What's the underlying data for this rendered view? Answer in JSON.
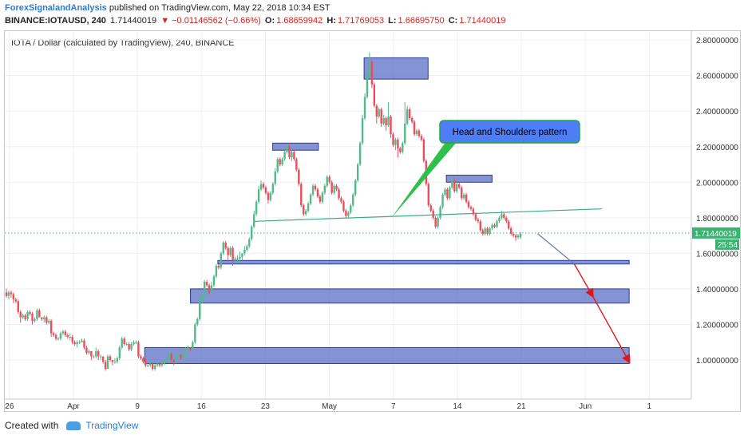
{
  "header": {
    "author": "ForexSignalandAnalysis",
    "published": "published on TradingView.com, May 22, 2018 10:34 EST",
    "symbol": "BINANCE:IOTAUSD, 240",
    "last": "1.71440019",
    "change": "▼ −0.01146562 (−0.66%)",
    "o_label": "O:",
    "o_value": "1.68659942",
    "h_label": "H:",
    "h_value": "1.71769053",
    "l_label": "L:",
    "l_value": "1.66695750",
    "c_label": "C:",
    "c_value": "1.71440019"
  },
  "footer": {
    "created_with": "Created with",
    "brand": "TradingView"
  },
  "chart_data": {
    "type": "candlestick",
    "title": "IOTA / Dollar (calculated by TradingView), 240, BINANCE",
    "y_range": [
      0.78,
      2.85
    ],
    "y_ticks": [
      "2.80000000",
      "2.60000000",
      "2.40000000",
      "2.20000000",
      "2.00000000",
      "1.80000000",
      "1.60000000",
      "1.40000000",
      "1.20000000",
      "1.00000000"
    ],
    "x_ticks": [
      "26",
      "Apr",
      "9",
      "16",
      "23",
      "May",
      "7",
      "14",
      "21",
      "Jun",
      "1"
    ],
    "last_price_label": "1.71440019",
    "countdown_label": "25:54",
    "last_price": 1.7144,
    "colors": {
      "up": "#53b987",
      "down": "#eb4d5c",
      "zone": "#5a6fc4",
      "neckline": "#3aa88a",
      "projection": "#e0161e",
      "callout_fill": "#4e7df5",
      "callout_border": "#22a83a",
      "price_tag": "#3cb371"
    },
    "annotation": "Head and Shoulders pattern",
    "candles": [
      [
        1.38,
        1.36,
        1.4,
        1.35
      ],
      [
        1.36,
        1.38,
        1.39,
        1.34
      ],
      [
        1.38,
        1.37,
        1.39,
        1.35
      ],
      [
        1.37,
        1.34,
        1.38,
        1.32
      ],
      [
        1.34,
        1.33,
        1.35,
        1.32
      ],
      [
        1.33,
        1.27,
        1.34,
        1.26
      ],
      [
        1.27,
        1.24,
        1.28,
        1.21
      ],
      [
        1.24,
        1.25,
        1.26,
        1.23
      ],
      [
        1.25,
        1.23,
        1.26,
        1.22
      ],
      [
        1.23,
        1.27,
        1.28,
        1.22
      ],
      [
        1.27,
        1.26,
        1.28,
        1.25
      ],
      [
        1.26,
        1.22,
        1.27,
        1.2
      ],
      [
        1.22,
        1.23,
        1.24,
        1.21
      ],
      [
        1.23,
        1.28,
        1.29,
        1.22
      ],
      [
        1.28,
        1.24,
        1.29,
        1.24
      ],
      [
        1.24,
        1.23,
        1.24,
        1.22
      ],
      [
        1.23,
        1.24,
        1.25,
        1.21
      ],
      [
        1.24,
        1.21,
        1.25,
        1.2
      ],
      [
        1.21,
        1.22,
        1.23,
        1.2
      ],
      [
        1.22,
        1.15,
        1.23,
        1.13
      ],
      [
        1.15,
        1.14,
        1.16,
        1.13
      ],
      [
        1.14,
        1.12,
        1.15,
        1.11
      ],
      [
        1.12,
        1.12,
        1.13,
        1.11
      ],
      [
        1.12,
        1.15,
        1.16,
        1.11
      ],
      [
        1.15,
        1.16,
        1.17,
        1.14
      ],
      [
        1.16,
        1.14,
        1.17,
        1.13
      ],
      [
        1.14,
        1.13,
        1.15,
        1.12
      ],
      [
        1.13,
        1.13,
        1.15,
        1.11
      ],
      [
        1.13,
        1.1,
        1.14,
        1.09
      ],
      [
        1.1,
        1.09,
        1.11,
        1.08
      ],
      [
        1.09,
        1.1,
        1.11,
        1.07
      ],
      [
        1.1,
        1.1,
        1.11,
        1.09
      ],
      [
        1.1,
        1.11,
        1.12,
        1.1
      ],
      [
        1.11,
        1.07,
        1.12,
        1.06
      ],
      [
        1.07,
        1.04,
        1.08,
        1.03
      ],
      [
        1.04,
        1.05,
        1.06,
        1.03
      ],
      [
        1.05,
        1.02,
        1.05,
        1.0
      ],
      [
        1.02,
        1.02,
        1.03,
        1.01
      ],
      [
        1.02,
        1.05,
        1.07,
        1.01
      ],
      [
        1.05,
        1.02,
        1.06,
        1.0
      ],
      [
        1.02,
        1.02,
        1.03,
        1.0
      ],
      [
        1.02,
        0.99,
        1.02,
        0.98
      ],
      [
        0.99,
        0.95,
        1.0,
        0.94
      ],
      [
        0.95,
        1.02,
        1.03,
        0.95
      ],
      [
        1.02,
        1.0,
        1.03,
        0.99
      ],
      [
        1.0,
        0.99,
        1.0,
        0.97
      ],
      [
        0.99,
        0.99,
        1.01,
        0.98
      ],
      [
        0.99,
        1.01,
        1.02,
        0.98
      ],
      [
        1.01,
        1.07,
        1.08,
        1.0
      ],
      [
        1.07,
        1.12,
        1.13,
        1.06
      ],
      [
        1.12,
        1.09,
        1.13,
        1.08
      ],
      [
        1.09,
        1.09,
        1.1,
        1.08
      ],
      [
        1.09,
        1.06,
        1.1,
        1.05
      ],
      [
        1.06,
        1.09,
        1.1,
        1.05
      ],
      [
        1.09,
        1.1,
        1.11,
        1.08
      ],
      [
        1.1,
        1.1,
        1.11,
        1.09
      ],
      [
        1.1,
        1.02,
        1.11,
        1.01
      ],
      [
        1.02,
        1.01,
        1.03,
        1.0
      ],
      [
        1.01,
        0.99,
        1.02,
        0.98
      ],
      [
        0.99,
        0.97,
        1.01,
        0.96
      ],
      [
        0.97,
        0.97,
        0.98,
        0.96
      ],
      [
        0.97,
        0.98,
        0.99,
        0.96
      ],
      [
        0.98,
        0.95,
        0.99,
        0.94
      ],
      [
        0.95,
        0.97,
        0.98,
        0.94
      ],
      [
        0.97,
        0.98,
        0.99,
        0.96
      ],
      [
        0.98,
        0.97,
        0.99,
        0.96
      ],
      [
        0.97,
        0.98,
        0.99,
        0.96
      ],
      [
        0.98,
        1.0,
        1.01,
        0.97
      ],
      [
        1.0,
        1.0,
        1.01,
        0.99
      ],
      [
        1.0,
        1.03,
        1.04,
        0.99
      ],
      [
        1.03,
        1.0,
        1.04,
        0.99
      ],
      [
        1.0,
        0.99,
        1.0,
        0.97
      ],
      [
        0.99,
        1.02,
        1.03,
        0.98
      ],
      [
        1.02,
        1.03,
        1.04,
        1.01
      ],
      [
        1.03,
        1.01,
        1.03,
        1.0
      ],
      [
        1.01,
        1.04,
        1.05,
        1.0
      ],
      [
        1.04,
        1.06,
        1.07,
        1.03
      ],
      [
        1.06,
        1.07,
        1.08,
        1.05
      ],
      [
        1.07,
        1.06,
        1.07,
        1.05
      ],
      [
        1.06,
        1.1,
        1.11,
        1.05
      ],
      [
        1.1,
        1.2,
        1.21,
        1.09
      ],
      [
        1.2,
        1.23,
        1.24,
        1.19
      ],
      [
        1.23,
        1.33,
        1.35,
        1.22
      ],
      [
        1.33,
        1.37,
        1.38,
        1.32
      ],
      [
        1.37,
        1.44,
        1.45,
        1.36
      ],
      [
        1.44,
        1.42,
        1.45,
        1.41
      ],
      [
        1.42,
        1.38,
        1.43,
        1.37
      ],
      [
        1.38,
        1.42,
        1.44,
        1.37
      ],
      [
        1.42,
        1.47,
        1.48,
        1.41
      ],
      [
        1.47,
        1.53,
        1.54,
        1.46
      ],
      [
        1.53,
        1.52,
        1.54,
        1.51
      ],
      [
        1.52,
        1.6,
        1.61,
        1.51
      ],
      [
        1.6,
        1.66,
        1.67,
        1.59
      ],
      [
        1.66,
        1.63,
        1.67,
        1.62
      ],
      [
        1.63,
        1.59,
        1.64,
        1.55
      ],
      [
        1.59,
        1.63,
        1.64,
        1.58
      ],
      [
        1.63,
        1.56,
        1.64,
        1.53
      ],
      [
        1.56,
        1.57,
        1.58,
        1.55
      ],
      [
        1.57,
        1.57,
        1.59,
        1.55
      ],
      [
        1.57,
        1.58,
        1.61,
        1.55
      ],
      [
        1.58,
        1.6,
        1.6,
        1.56
      ],
      [
        1.6,
        1.62,
        1.64,
        1.59
      ],
      [
        1.62,
        1.64,
        1.65,
        1.61
      ],
      [
        1.64,
        1.68,
        1.69,
        1.63
      ],
      [
        1.68,
        1.75,
        1.76,
        1.67
      ],
      [
        1.75,
        1.82,
        1.84,
        1.74
      ],
      [
        1.82,
        1.89,
        1.9,
        1.81
      ],
      [
        1.89,
        1.96,
        1.98,
        1.88
      ],
      [
        1.96,
        1.99,
        2.01,
        1.95
      ],
      [
        1.99,
        1.97,
        2.0,
        1.96
      ],
      [
        1.97,
        1.94,
        1.98,
        1.93
      ],
      [
        1.94,
        1.9,
        1.95,
        1.88
      ],
      [
        1.9,
        1.94,
        1.95,
        1.89
      ],
      [
        1.94,
        1.99,
        2.0,
        1.93
      ],
      [
        1.99,
        2.06,
        2.08,
        1.98
      ],
      [
        2.06,
        2.13,
        2.14,
        2.05
      ],
      [
        2.13,
        2.1,
        2.14,
        2.09
      ],
      [
        2.1,
        2.13,
        2.14,
        2.09
      ],
      [
        2.13,
        2.17,
        2.18,
        2.12
      ],
      [
        2.17,
        2.2,
        2.21,
        2.16
      ],
      [
        2.2,
        2.14,
        2.21,
        2.13
      ],
      [
        2.14,
        2.17,
        2.19,
        2.12
      ],
      [
        2.17,
        2.13,
        2.18,
        2.12
      ],
      [
        2.13,
        2.07,
        2.14,
        2.06
      ],
      [
        2.07,
        1.99,
        2.08,
        1.98
      ],
      [
        1.99,
        1.87,
        2.0,
        1.86
      ],
      [
        1.87,
        1.82,
        1.88,
        1.81
      ],
      [
        1.82,
        1.84,
        1.85,
        1.81
      ],
      [
        1.84,
        1.88,
        1.89,
        1.83
      ],
      [
        1.88,
        1.93,
        1.94,
        1.87
      ],
      [
        1.93,
        1.98,
        1.99,
        1.92
      ],
      [
        1.98,
        1.96,
        1.99,
        1.95
      ],
      [
        1.96,
        1.92,
        1.97,
        1.91
      ],
      [
        1.92,
        1.89,
        1.93,
        1.88
      ],
      [
        1.89,
        1.94,
        1.95,
        1.88
      ],
      [
        1.94,
        1.98,
        1.99,
        1.93
      ],
      [
        1.98,
        2.03,
        2.04,
        1.97
      ],
      [
        2.03,
        2.0,
        2.04,
        1.99
      ],
      [
        2.0,
        1.94,
        2.01,
        1.93
      ],
      [
        1.94,
        1.98,
        1.99,
        1.93
      ],
      [
        1.98,
        1.96,
        1.99,
        1.95
      ],
      [
        1.96,
        1.91,
        1.97,
        1.9
      ],
      [
        1.91,
        1.89,
        1.92,
        1.88
      ],
      [
        1.89,
        1.84,
        1.9,
        1.83
      ],
      [
        1.84,
        1.81,
        1.85,
        1.8
      ],
      [
        1.81,
        1.83,
        1.84,
        1.8
      ],
      [
        1.83,
        1.87,
        1.88,
        1.82
      ],
      [
        1.87,
        1.93,
        1.94,
        1.86
      ],
      [
        1.93,
        2.01,
        2.02,
        1.92
      ],
      [
        2.01,
        2.1,
        2.11,
        2.0
      ],
      [
        2.1,
        2.22,
        2.23,
        2.09
      ],
      [
        2.22,
        2.36,
        2.38,
        2.21
      ],
      [
        2.36,
        2.48,
        2.5,
        2.35
      ],
      [
        2.48,
        2.6,
        2.62,
        2.47
      ],
      [
        2.6,
        2.68,
        2.73,
        2.59
      ],
      [
        2.68,
        2.55,
        2.69,
        2.53
      ],
      [
        2.55,
        2.43,
        2.56,
        2.42
      ],
      [
        2.43,
        2.37,
        2.44,
        2.33
      ],
      [
        2.37,
        2.41,
        2.42,
        2.36
      ],
      [
        2.41,
        2.33,
        2.42,
        2.31
      ],
      [
        2.33,
        2.36,
        2.38,
        2.32
      ],
      [
        2.36,
        2.32,
        2.37,
        2.29
      ],
      [
        2.32,
        2.37,
        2.45,
        2.31
      ],
      [
        2.37,
        2.27,
        2.38,
        2.25
      ],
      [
        2.27,
        2.21,
        2.28,
        2.2
      ],
      [
        2.21,
        2.24,
        2.25,
        2.18
      ],
      [
        2.24,
        2.19,
        2.25,
        2.14
      ],
      [
        2.19,
        2.17,
        2.2,
        2.16
      ],
      [
        2.17,
        2.22,
        2.23,
        2.16
      ],
      [
        2.22,
        2.33,
        2.45,
        2.21
      ],
      [
        2.33,
        2.41,
        2.43,
        2.32
      ],
      [
        2.41,
        2.36,
        2.42,
        2.35
      ],
      [
        2.36,
        2.34,
        2.37,
        2.33
      ],
      [
        2.34,
        2.27,
        2.35,
        2.26
      ],
      [
        2.27,
        2.29,
        2.3,
        2.26
      ],
      [
        2.29,
        2.26,
        2.3,
        2.25
      ],
      [
        2.26,
        2.24,
        2.27,
        2.23
      ],
      [
        2.24,
        2.12,
        2.25,
        2.11
      ],
      [
        2.12,
        1.99,
        2.13,
        1.98
      ],
      [
        1.99,
        1.87,
        2.0,
        1.86
      ],
      [
        1.87,
        1.84,
        1.88,
        1.83
      ],
      [
        1.84,
        1.8,
        1.85,
        1.79
      ],
      [
        1.8,
        1.75,
        1.81,
        1.74
      ],
      [
        1.75,
        1.8,
        1.81,
        1.74
      ],
      [
        1.8,
        1.86,
        1.87,
        1.79
      ],
      [
        1.86,
        1.93,
        1.94,
        1.85
      ],
      [
        1.93,
        1.96,
        1.97,
        1.92
      ],
      [
        1.96,
        1.91,
        1.97,
        1.9
      ],
      [
        1.91,
        1.97,
        1.98,
        1.9
      ],
      [
        1.97,
        2.01,
        2.02,
        1.96
      ],
      [
        2.01,
        1.95,
        2.02,
        1.94
      ],
      [
        1.95,
        1.99,
        2.0,
        1.94
      ],
      [
        1.99,
        1.97,
        2.0,
        1.96
      ],
      [
        1.97,
        1.91,
        1.98,
        1.9
      ],
      [
        1.91,
        1.93,
        1.94,
        1.9
      ],
      [
        1.93,
        1.89,
        1.94,
        1.88
      ],
      [
        1.89,
        1.86,
        1.9,
        1.85
      ],
      [
        1.86,
        1.85,
        1.87,
        1.84
      ],
      [
        1.85,
        1.82,
        1.86,
        1.81
      ],
      [
        1.82,
        1.79,
        1.83,
        1.78
      ],
      [
        1.79,
        1.78,
        1.8,
        1.77
      ],
      [
        1.78,
        1.73,
        1.79,
        1.72
      ],
      [
        1.73,
        1.71,
        1.74,
        1.7
      ],
      [
        1.71,
        1.74,
        1.75,
        1.7
      ],
      [
        1.74,
        1.71,
        1.75,
        1.7
      ],
      [
        1.71,
        1.74,
        1.75,
        1.7
      ],
      [
        1.74,
        1.76,
        1.77,
        1.73
      ],
      [
        1.76,
        1.75,
        1.77,
        1.74
      ],
      [
        1.75,
        1.78,
        1.79,
        1.74
      ],
      [
        1.78,
        1.8,
        1.81,
        1.77
      ],
      [
        1.8,
        1.82,
        1.84,
        1.79
      ],
      [
        1.82,
        1.8,
        1.83,
        1.79
      ],
      [
        1.8,
        1.78,
        1.81,
        1.77
      ],
      [
        1.78,
        1.74,
        1.79,
        1.73
      ],
      [
        1.74,
        1.71,
        1.75,
        1.7
      ],
      [
        1.71,
        1.7,
        1.72,
        1.69
      ],
      [
        1.7,
        1.69,
        1.71,
        1.67
      ],
      [
        1.69,
        1.7,
        1.71,
        1.68
      ],
      [
        1.69,
        1.71,
        1.72,
        1.68
      ]
    ],
    "zones": [
      {
        "x1": "May 3",
        "x2": "May 10",
        "ymin": 2.58,
        "ymax": 2.7
      },
      {
        "x1": "Apr 23",
        "x2": "Apr 28",
        "ymin": 2.18,
        "ymax": 2.22
      },
      {
        "x1": "May 12",
        "x2": "May 17",
        "ymin": 2.0,
        "ymax": 2.04
      },
      {
        "x1": "Apr 17",
        "x2": "Jun 1",
        "ymin": 1.54,
        "ymax": 1.56
      },
      {
        "x1": "Apr 14",
        "x2": "Jun 1",
        "ymin": 1.32,
        "ymax": 1.4
      },
      {
        "x1": "Apr 9",
        "x2": "Jun 1",
        "ymin": 0.98,
        "ymax": 1.07
      }
    ],
    "neckline": {
      "x1": "Apr 21",
      "y1": 1.78,
      "x2": "May 29",
      "y2": 1.85
    },
    "projection": [
      [
        "May 22",
        1.71
      ],
      [
        "May 26",
        1.54
      ],
      [
        "May 28",
        1.36
      ],
      [
        "Jun 1",
        0.99
      ]
    ]
  }
}
